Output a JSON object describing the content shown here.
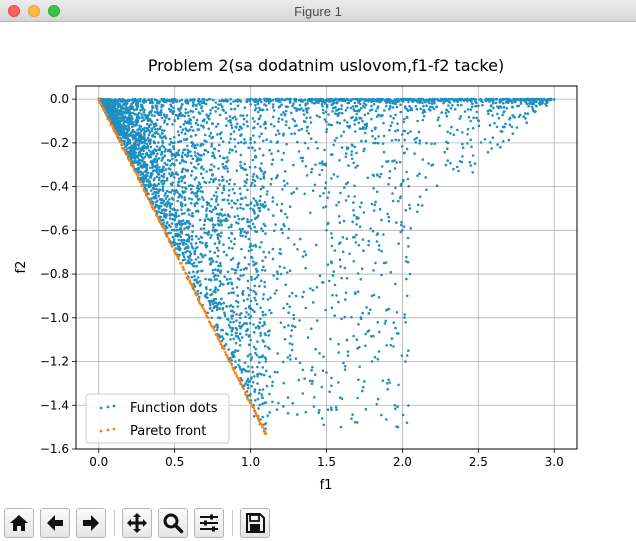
{
  "window": {
    "title": "Figure 1"
  },
  "chart_data": {
    "type": "scatter",
    "title": "Problem 2(sa dodatnim uslovom,f1-f2 tacke)",
    "xlabel": "f1",
    "ylabel": "f2",
    "xlim": [
      -0.15,
      3.15
    ],
    "ylim": [
      -1.6,
      0.06
    ],
    "xticks": [
      0.0,
      0.5,
      1.0,
      1.5,
      2.0,
      2.5,
      3.0
    ],
    "xtick_labels": [
      "0.0",
      "0.5",
      "1.0",
      "1.5",
      "2.0",
      "2.5",
      "3.0"
    ],
    "yticks": [
      0.0,
      -0.2,
      -0.4,
      -0.6,
      -0.8,
      -1.0,
      -1.2,
      -1.4,
      -1.6
    ],
    "ytick_labels": [
      "0.0",
      "−0.2",
      "−0.4",
      "−0.6",
      "−0.8",
      "−1.0",
      "−1.2",
      "−1.4",
      "−1.6"
    ],
    "grid": true,
    "legend_position": "lower-left",
    "series": [
      {
        "name": "Function dots",
        "color": "#1f8fc0",
        "region": {
          "description_points": "uniform cloud bounded by apex (0,0), right edge along f2=0 to f1=3.0, and lower edge f2 = -1.4*f1 up to f1=1.1",
          "n": 4200
        },
        "points": [
          [
            0.0,
            0.0
          ],
          [
            3.0,
            -0.002
          ],
          [
            2.95,
            -0.01
          ],
          [
            2.8,
            -0.005
          ],
          [
            2.7,
            -0.01
          ],
          [
            2.6,
            -0.04
          ],
          [
            2.5,
            -0.03
          ],
          [
            2.45,
            -0.1
          ],
          [
            2.3,
            -0.2
          ],
          [
            2.2,
            -0.3
          ],
          [
            2.1,
            -0.35
          ],
          [
            2.05,
            -0.5
          ],
          [
            2.0,
            -0.6
          ],
          [
            2.05,
            -0.8
          ],
          [
            2.02,
            -1.2
          ],
          [
            2.03,
            -1.48
          ],
          [
            1.97,
            -1.5
          ],
          [
            1.95,
            -1.4
          ],
          [
            1.9,
            -1.3
          ],
          [
            1.8,
            -1.2
          ],
          [
            1.7,
            -1.1
          ],
          [
            1.5,
            -1.25
          ],
          [
            1.4,
            -1.05
          ],
          [
            1.3,
            -0.9
          ],
          [
            1.2,
            -0.8
          ],
          [
            1.1,
            -1.2
          ],
          [
            1.0,
            -1.35
          ],
          [
            1.05,
            -1.45
          ],
          [
            1.02,
            -1.4
          ],
          [
            0.9,
            -1.2
          ],
          [
            0.8,
            -1.0
          ],
          [
            0.7,
            -0.9
          ],
          [
            0.6,
            -0.75
          ],
          [
            0.5,
            -0.6
          ],
          [
            0.4,
            -0.5
          ],
          [
            0.3,
            -0.35
          ],
          [
            0.2,
            -0.25
          ],
          [
            0.1,
            -0.12
          ],
          [
            0.5,
            -0.1
          ],
          [
            1.0,
            -0.2
          ],
          [
            1.5,
            -0.15
          ],
          [
            1.0,
            -0.5
          ],
          [
            1.5,
            -0.6
          ],
          [
            1.8,
            -0.9
          ],
          [
            2.1,
            -0.1
          ]
        ]
      },
      {
        "name": "Pareto front",
        "color": "#ff7f0e",
        "line": {
          "from": [
            0.0,
            0.0
          ],
          "to": [
            1.1,
            -1.53
          ]
        },
        "points": [
          [
            0.0,
            0.0
          ],
          [
            0.1,
            -0.14
          ],
          [
            0.2,
            -0.28
          ],
          [
            0.3,
            -0.42
          ],
          [
            0.4,
            -0.56
          ],
          [
            0.5,
            -0.7
          ],
          [
            0.6,
            -0.83
          ],
          [
            0.7,
            -0.97
          ],
          [
            0.8,
            -1.11
          ],
          [
            0.9,
            -1.25
          ],
          [
            1.0,
            -1.39
          ],
          [
            1.05,
            -1.46
          ],
          [
            1.1,
            -1.53
          ]
        ]
      }
    ]
  },
  "toolbar": {
    "buttons": [
      {
        "name": "home-button",
        "icon": "home-icon"
      },
      {
        "name": "back-button",
        "icon": "arrow-left-icon"
      },
      {
        "name": "forward-button",
        "icon": "arrow-right-icon"
      },
      {
        "name": "pan-button",
        "icon": "move-icon"
      },
      {
        "name": "zoom-button",
        "icon": "magnifier-icon"
      },
      {
        "name": "configure-subplots-button",
        "icon": "sliders-icon"
      },
      {
        "name": "save-button",
        "icon": "floppy-icon"
      }
    ]
  }
}
